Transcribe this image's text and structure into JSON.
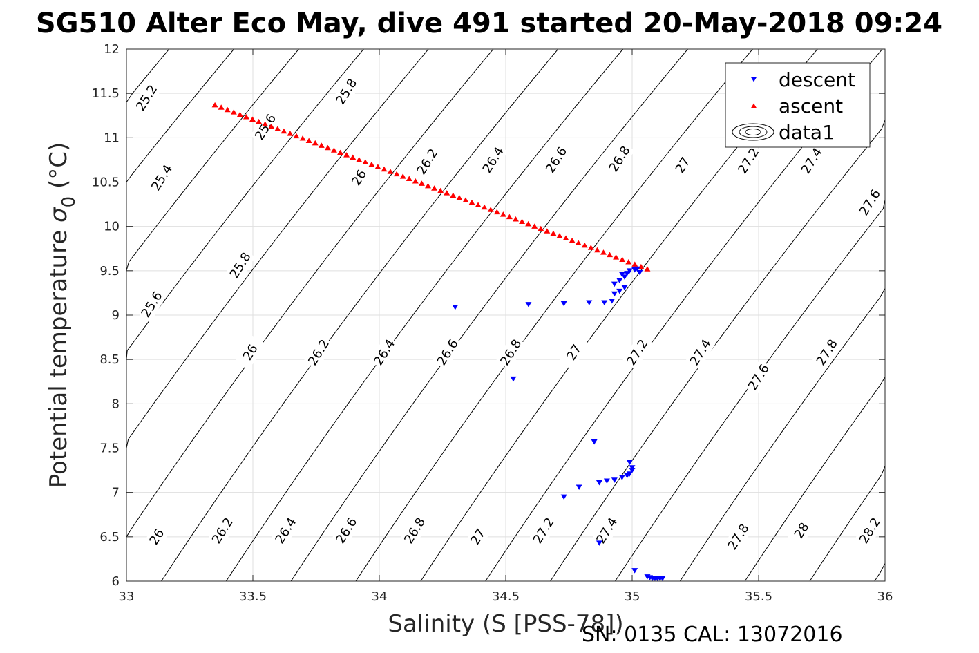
{
  "figure": {
    "title": "SG510 Alter Eco May, dive 491 started 20-May-2018 09:24",
    "footer": "SN: 0135  CAL: 13072016"
  },
  "chart_data": {
    "type": "scatter",
    "title": "SG510 Alter Eco May, dive 491 started 20-May-2018 09:24",
    "xlabel": "Salinity (S [PSS-78])",
    "ylabel": "Potential temperature σ 0 (°C)",
    "ylabel_main": "Potential temperature ",
    "ylabel_symbol": "σ",
    "ylabel_sub": "0",
    "ylabel_unit": " (°C)",
    "xlim": [
      33,
      36
    ],
    "ylim": [
      6,
      12
    ],
    "xticks": [
      "33",
      "33.5",
      "34",
      "34.5",
      "35",
      "35.5",
      "36"
    ],
    "yticks": [
      "6",
      "6.5",
      "7",
      "7.5",
      "8",
      "8.5",
      "9",
      "9.5",
      "10",
      "10.5",
      "11",
      "11.5",
      "12"
    ],
    "grid": true,
    "legend_position": "top-right",
    "series": [
      {
        "name": "descent",
        "marker": "triangle-down",
        "color": "#0000ff",
        "points": [
          [
            34.3,
            9.09
          ],
          [
            34.59,
            9.12
          ],
          [
            34.73,
            9.13
          ],
          [
            34.83,
            9.14
          ],
          [
            34.89,
            9.14
          ],
          [
            34.92,
            9.16
          ],
          [
            34.93,
            9.24
          ],
          [
            34.95,
            9.27
          ],
          [
            34.97,
            9.31
          ],
          [
            34.93,
            9.35
          ],
          [
            34.95,
            9.39
          ],
          [
            34.97,
            9.43
          ],
          [
            34.96,
            9.46
          ],
          [
            34.98,
            9.47
          ],
          [
            34.99,
            9.5
          ],
          [
            35.01,
            9.51
          ],
          [
            35.02,
            9.52
          ],
          [
            35.03,
            9.48
          ],
          [
            34.53,
            8.28
          ],
          [
            34.85,
            7.57
          ],
          [
            34.99,
            7.34
          ],
          [
            35.0,
            7.28
          ],
          [
            35.0,
            7.25
          ],
          [
            34.99,
            7.21
          ],
          [
            34.98,
            7.19
          ],
          [
            34.96,
            7.17
          ],
          [
            34.93,
            7.14
          ],
          [
            34.9,
            7.13
          ],
          [
            34.87,
            7.11
          ],
          [
            34.79,
            7.06
          ],
          [
            34.73,
            6.95
          ],
          [
            34.87,
            6.43
          ],
          [
            35.01,
            6.12
          ],
          [
            35.06,
            6.05
          ],
          [
            35.07,
            6.04
          ],
          [
            35.08,
            6.03
          ],
          [
            35.09,
            6.03
          ],
          [
            35.1,
            6.03
          ],
          [
            35.11,
            6.03
          ],
          [
            35.12,
            6.03
          ]
        ]
      },
      {
        "name": "ascent",
        "marker": "triangle-up",
        "color": "#ff0000",
        "start": [
          33.35,
          11.37
        ],
        "end": [
          35.06,
          9.52
        ],
        "count": 70
      }
    ],
    "contours": {
      "name": "data1",
      "note": "sigma-0 isopycnals (kg/m3 - 1000)",
      "labels": [
        {
          "text": "25.2",
          "s": 33.08,
          "t": 11.45
        },
        {
          "text": "25.8",
          "s": 33.87,
          "t": 11.52
        },
        {
          "text": "25.6",
          "s": 33.55,
          "t": 11.12
        },
        {
          "text": "25.4",
          "s": 33.14,
          "t": 10.55
        },
        {
          "text": "26",
          "s": 33.92,
          "t": 10.55
        },
        {
          "text": "26.2",
          "s": 34.19,
          "t": 10.73
        },
        {
          "text": "26.4",
          "s": 34.45,
          "t": 10.75
        },
        {
          "text": "26.6",
          "s": 34.7,
          "t": 10.75
        },
        {
          "text": "26.8",
          "s": 34.95,
          "t": 10.76
        },
        {
          "text": "27",
          "s": 35.2,
          "t": 10.69
        },
        {
          "text": "27.2",
          "s": 35.46,
          "t": 10.74
        },
        {
          "text": "27.4",
          "s": 35.71,
          "t": 10.74
        },
        {
          "text": "27.6",
          "s": 35.94,
          "t": 10.27
        },
        {
          "text": "25.8",
          "s": 33.45,
          "t": 9.56
        },
        {
          "text": "25.6",
          "s": 33.1,
          "t": 9.12
        },
        {
          "text": "26",
          "s": 33.49,
          "t": 8.58
        },
        {
          "text": "26.2",
          "s": 33.76,
          "t": 8.58
        },
        {
          "text": "26.4",
          "s": 34.02,
          "t": 8.58
        },
        {
          "text": "26.6",
          "s": 34.27,
          "t": 8.58
        },
        {
          "text": "26.8",
          "s": 34.52,
          "t": 8.58
        },
        {
          "text": "27",
          "s": 34.77,
          "t": 8.58
        },
        {
          "text": "27.2",
          "s": 35.02,
          "t": 8.58
        },
        {
          "text": "27.4",
          "s": 35.27,
          "t": 8.58
        },
        {
          "text": "27.6",
          "s": 35.5,
          "t": 8.3
        },
        {
          "text": "27.8",
          "s": 35.77,
          "t": 8.58
        },
        {
          "text": "26",
          "s": 33.12,
          "t": 6.5
        },
        {
          "text": "26.2",
          "s": 33.38,
          "t": 6.57
        },
        {
          "text": "26.4",
          "s": 33.63,
          "t": 6.57
        },
        {
          "text": "26.6",
          "s": 33.87,
          "t": 6.57
        },
        {
          "text": "26.8",
          "s": 34.14,
          "t": 6.57
        },
        {
          "text": "27",
          "s": 34.39,
          "t": 6.5
        },
        {
          "text": "27.2",
          "s": 34.65,
          "t": 6.57
        },
        {
          "text": "27.4",
          "s": 34.9,
          "t": 6.57
        },
        {
          "text": "27.8",
          "s": 35.42,
          "t": 6.5
        },
        {
          "text": "28",
          "s": 35.67,
          "t": 6.57
        },
        {
          "text": "28.2",
          "s": 35.94,
          "t": 6.57
        }
      ]
    }
  }
}
